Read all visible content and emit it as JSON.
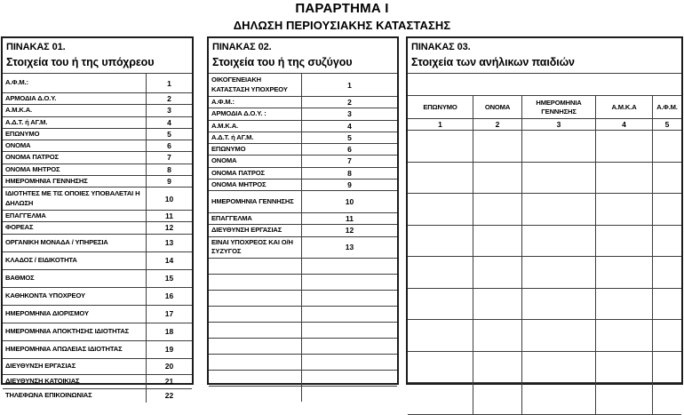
{
  "page": {
    "title": "ΠΑΡΑΡΤΗΜΑ Ι",
    "subtitle": "ΔΗΛΩΣΗ ΠΕΡΙΟΥΣΙΑΚΗΣ ΚΑΤΑΣΤΑΣΗΣ"
  },
  "colors": {
    "text": "#000000",
    "border": "#3d3d3d",
    "background": "#ffffff"
  },
  "table1": {
    "title": "ΠΙΝΑΚΑΣ 01.",
    "subtitle": "Στοιχεία του ή της υπόχρεου",
    "rows": [
      {
        "label": "Α.Φ.Μ.:",
        "num": "1"
      },
      {
        "label": "ΑΡΜΟΔΙΑ Δ.Ο.Υ.",
        "num": "2"
      },
      {
        "label": "Α.Μ.Κ.Α.",
        "num": "3"
      },
      {
        "label": "Α.Δ.Τ. ή ΑΓ.Μ.",
        "num": "4"
      },
      {
        "label": "ΕΠΩΝΥΜΟ",
        "num": "5"
      },
      {
        "label": "ΟΝΟΜΑ",
        "num": "6"
      },
      {
        "label": "ΟΝΟΜΑ ΠΑΤΡΟΣ",
        "num": "7"
      },
      {
        "label": "ΟΝΟΜΑ ΜΗΤΡΟΣ",
        "num": "8"
      },
      {
        "label": "ΗΜΕΡΟΜΗΝΙΑ ΓΕΝΝΗΣΗΣ",
        "num": "9"
      },
      {
        "label": "ΙΔΙΟΤΗΤΕΣ ΜΕ ΤΙΣ ΟΠΟΙΕΣ ΥΠΟΒΑΛΕΤΑΙ Η ΔΗΛΩΣΗ",
        "num": "10"
      },
      {
        "label": "ΕΠΑΓΓΕΛΜΑ",
        "num": "11"
      },
      {
        "label": "ΦΟΡΕΑΣ",
        "num": "12"
      },
      {
        "label": "ΟΡΓΑΝΙΚΗ ΜΟΝΑΔΑ / ΥΠΗΡΕΣΙΑ",
        "num": "13"
      },
      {
        "label": "ΚΛΑΔΟΣ / ΕΙΔΙΚΟΤΗΤΑ",
        "num": "14"
      },
      {
        "label": "ΒΑΘΜΟΣ",
        "num": "15"
      },
      {
        "label": "ΚΑΘΗΚΟΝΤΑ ΥΠΟΧΡΕΟΥ",
        "num": "16"
      },
      {
        "label": "ΗΜΕΡΟΜΗΝΙΑ ΔΙΟΡΙΣΜΟΥ",
        "num": "17"
      },
      {
        "label": "ΗΜΕΡΟΜΗΝΙΑ ΑΠΟΚΤΗΣΗΣ ΙΔΙΟΤΗΤΑΣ",
        "num": "18"
      },
      {
        "label": "ΗΜΕΡΟΜΗΝΙΑ ΑΠΩΛΕΙΑΣ ΙΔΙΟΤΗΤΑΣ",
        "num": "19"
      },
      {
        "label": "ΔΙΕΥΘΥΝΣΗ ΕΡΓΑΣΙΑΣ",
        "num": "20"
      },
      {
        "label": "ΔΙΕΥΘΥΝΣΗ ΚΑΤΟΙΚΙΑΣ",
        "num": "21"
      },
      {
        "label": "ΤΗΛΕΦΩΝΑ ΕΠΙΚΟΙΝΩΝΙΑΣ",
        "num": "22"
      }
    ]
  },
  "table2": {
    "title": "ΠΙΝΑΚΑΣ 02.",
    "subtitle": "Στοιχεία του ή της συζύγου",
    "rows": [
      {
        "label": "ΟΙΚΟΓΕΝΕΙΑΚΗ ΚΑΤΑΣΤΑΣΗ ΥΠΟΧΡΕΟΥ",
        "num": "1"
      },
      {
        "label": "Α.Φ.Μ.:",
        "num": "2"
      },
      {
        "label": "ΑΡΜΟΔΙΑ Δ.Ο.Υ. :",
        "num": "3"
      },
      {
        "label": "Α.Μ.Κ.Α.",
        "num": "4"
      },
      {
        "label": "Α.Δ.Τ. ή ΑΓ.Μ.",
        "num": "5"
      },
      {
        "label": "ΕΠΩΝΥΜΟ",
        "num": "6"
      },
      {
        "label": "ΟΝΟΜΑ",
        "num": "7"
      },
      {
        "label": "ΟΝΟΜΑ ΠΑΤΡΟΣ",
        "num": "8"
      },
      {
        "label": "ΟΝΟΜΑ ΜΗΤΡΟΣ",
        "num": "9"
      },
      {
        "label": "ΗΜΕΡΟΜΗΝΙΑ ΓΕΝΝΗΣΗΣ",
        "num": "10"
      },
      {
        "label": "ΕΠΑΓΓΕΛΜΑ",
        "num": "11"
      },
      {
        "label": "ΔΙΕΥΘΥΝΣΗ ΕΡΓΑΣΙΑΣ",
        "num": "12"
      },
      {
        "label": "ΕΙΝΑΙ ΥΠΟΧΡΕΟΣ ΚΑΙ Ο/Η ΣΥΖΥΓΟΣ",
        "num": "13"
      }
    ],
    "empty_row_count": 9
  },
  "table3": {
    "title": "ΠΙΝΑΚΑΣ 03.",
    "subtitle": "Στοιχεία των ανήλικων παιδιών",
    "columns": [
      "ΕΠΩΝΥΜΟ",
      "ΟΝΟΜΑ",
      "ΗΜΕΡΟΜΗΝΙΑ ΓΕΝΝΗΣΗΣ",
      "Α.Μ.Κ.Α",
      "Α.Φ.Μ."
    ],
    "column_nums": [
      "1",
      "2",
      "3",
      "4",
      "5"
    ],
    "empty_row_count": 9
  }
}
